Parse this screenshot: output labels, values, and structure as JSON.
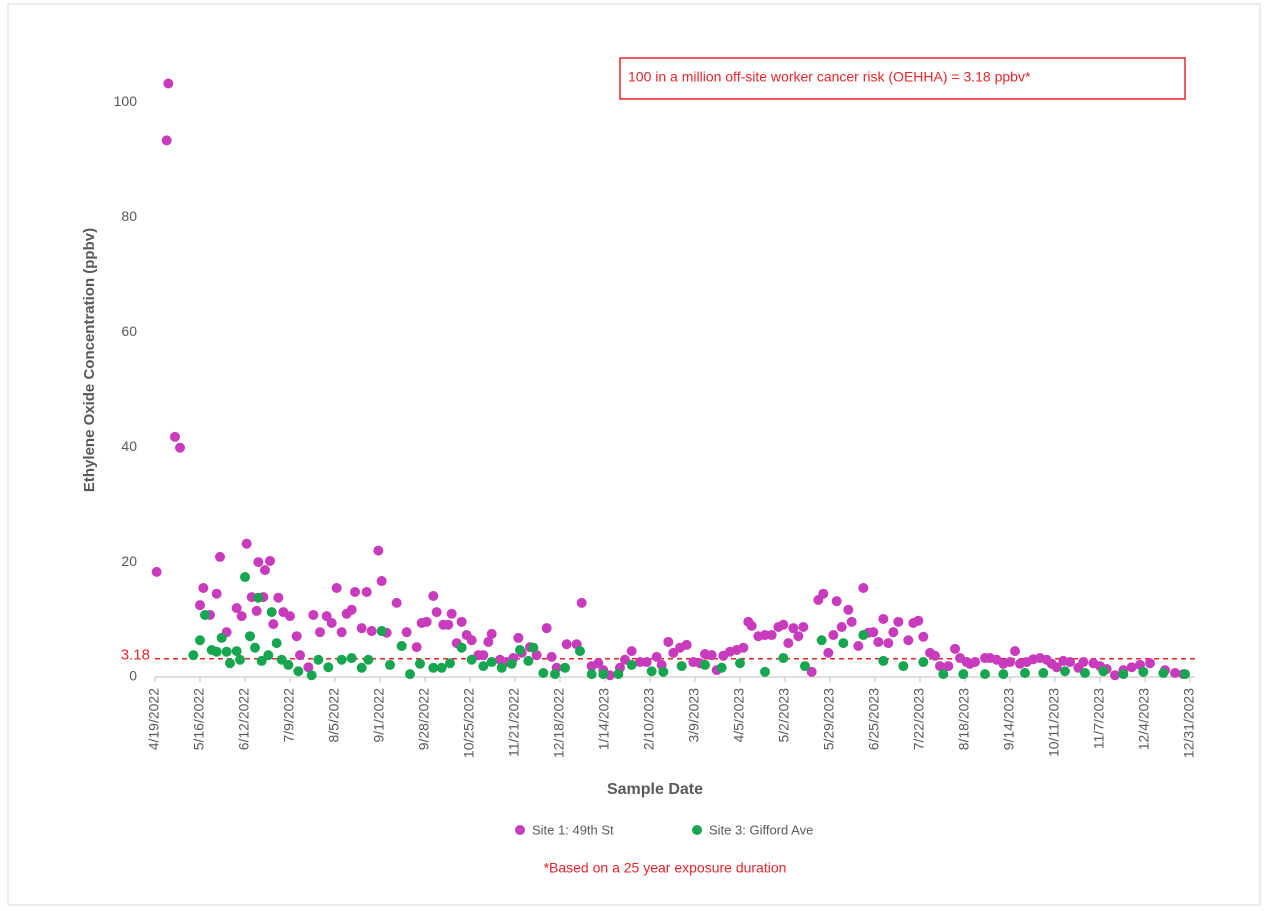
{
  "chart_data": {
    "type": "scatter",
    "xlabel": "Sample Date",
    "ylabel": "Ethylene Oxide Concentration (ppbv)",
    "annotation": "100 in a million off-site worker cancer risk (OEHHA) = 3.18 ppbv*",
    "footnote": "*Based on a 25 year exposure duration",
    "reference_line": {
      "value": 3.18,
      "color": "#e8262a"
    },
    "xlim": [
      "4/19/2022",
      "12/31/2023"
    ],
    "xticks": [
      "4/19/2022",
      "5/16/2022",
      "6/12/2022",
      "7/9/2022",
      "8/5/2022",
      "9/1/2022",
      "9/28/2022",
      "10/25/2022",
      "11/21/2022",
      "12/18/2022",
      "1/14/2023",
      "2/10/2023",
      "3/9/2023",
      "4/5/2023",
      "5/2/2023",
      "5/29/2023",
      "6/25/2023",
      "7/22/2023",
      "8/18/2023",
      "9/14/2023",
      "10/11/2023",
      "11/7/2023",
      "12/4/2023",
      "12/31/2023"
    ],
    "ylim": [
      0,
      110
    ],
    "yticks": [
      0,
      20,
      40,
      60,
      80,
      100
    ],
    "series": [
      {
        "name": "Site 1: 49th St",
        "color": "#c93bbd",
        "x": [
          "4/20/2022",
          "4/26/2022",
          "4/27/2022",
          "5/1/2022",
          "5/4/2022",
          "5/16/2022",
          "5/18/2022",
          "5/22/2022",
          "5/26/2022",
          "5/28/2022",
          "6/1/2022",
          "6/7/2022",
          "6/10/2022",
          "6/13/2022",
          "6/16/2022",
          "6/19/2022",
          "6/20/2022",
          "6/23/2022",
          "6/24/2022",
          "6/27/2022",
          "6/29/2022",
          "7/2/2022",
          "7/5/2022",
          "7/9/2022",
          "7/13/2022",
          "7/15/2022",
          "7/20/2022",
          "7/23/2022",
          "7/27/2022",
          "7/31/2022",
          "8/3/2022",
          "8/6/2022",
          "8/9/2022",
          "8/12/2022",
          "8/15/2022",
          "8/17/2022",
          "8/21/2022",
          "8/24/2022",
          "8/27/2022",
          "8/31/2022",
          "9/2/2022",
          "9/5/2022",
          "9/11/2022",
          "9/14/2022",
          "9/17/2022",
          "9/23/2022",
          "9/26/2022",
          "9/29/2022",
          "10/3/2022",
          "10/5/2022",
          "10/9/2022",
          "10/12/2022",
          "10/14/2022",
          "10/17/2022",
          "10/20/2022",
          "10/23/2022",
          "10/26/2022",
          "10/30/2022",
          "11/2/2022",
          "11/5/2022",
          "11/7/2022",
          "11/12/2022",
          "11/16/2022",
          "11/20/2022",
          "11/23/2022",
          "11/25/2022",
          "11/30/2022",
          "12/4/2022",
          "12/10/2022",
          "12/13/2022",
          "12/16/2022",
          "12/22/2022",
          "12/28/2022",
          "12/31/2022",
          "1/6/2023",
          "1/10/2023",
          "1/13/2023",
          "1/17/2023",
          "1/23/2023",
          "1/26/2023",
          "1/30/2023",
          "2/4/2023",
          "2/8/2023",
          "2/14/2023",
          "2/17/2023",
          "2/21/2023",
          "2/24/2023",
          "2/28/2023",
          "3/4/2023",
          "3/8/2023",
          "3/12/2023",
          "3/15/2023",
          "3/19/2023",
          "3/22/2023",
          "3/26/2023",
          "3/30/2023",
          "4/3/2023",
          "4/7/2023",
          "4/10/2023",
          "4/12/2023",
          "4/16/2023",
          "4/20/2023",
          "4/24/2023",
          "4/28/2023",
          "5/1/2023",
          "5/4/2023",
          "5/7/2023",
          "5/10/2023",
          "5/13/2023",
          "5/18/2023",
          "5/22/2023",
          "5/25/2023",
          "5/28/2023",
          "5/31/2023",
          "6/2/2023",
          "6/5/2023",
          "6/9/2023",
          "6/11/2023",
          "6/15/2023",
          "6/18/2023",
          "6/21/2023",
          "6/24/2023",
          "6/27/2023",
          "6/30/2023",
          "7/3/2023",
          "7/6/2023",
          "7/9/2023",
          "7/15/2023",
          "7/18/2023",
          "7/21/2023",
          "7/24/2023",
          "7/28/2023",
          "7/31/2023",
          "8/3/2023",
          "8/8/2023",
          "8/12/2023",
          "8/15/2023",
          "8/19/2023",
          "8/21/2023",
          "8/24/2023",
          "8/30/2023",
          "9/2/2023",
          "9/6/2023",
          "9/10/2023",
          "9/14/2023",
          "9/17/2023",
          "9/20/2023",
          "9/24/2023",
          "9/28/2023",
          "10/2/2023",
          "10/6/2023",
          "10/9/2023",
          "10/12/2023",
          "10/16/2023",
          "10/20/2023",
          "10/25/2023",
          "10/28/2023",
          "11/3/2023",
          "11/7/2023",
          "11/11/2023",
          "11/16/2023",
          "11/21/2023",
          "11/26/2023",
          "12/1/2023",
          "12/7/2023",
          "12/16/2023",
          "12/22/2023",
          "12/27/2023"
        ],
        "values": [
          18.3,
          93.4,
          103.3,
          41.8,
          39.9,
          12.5,
          15.5,
          10.8,
          14.5,
          20.9,
          7.8,
          12,
          10.6,
          23.2,
          13.9,
          11.5,
          20,
          13.9,
          18.6,
          20.2,
          9.2,
          13.8,
          11.3,
          10.6,
          7.1,
          3.8,
          1.7,
          10.8,
          7.8,
          10.6,
          9.4,
          15.5,
          7.8,
          11,
          11.7,
          14.8,
          8.5,
          14.8,
          8,
          22,
          16.7,
          7.7,
          12.9,
          5.4,
          7.8,
          5.2,
          9.4,
          9.6,
          14.1,
          11.3,
          9.1,
          9.1,
          11,
          5.9,
          9.6,
          7.3,
          6.4,
          3.8,
          3.8,
          6.1,
          7.5,
          3,
          2.6,
          3.3,
          6.8,
          4.2,
          5.2,
          3.8,
          8.5,
          3.5,
          1.6,
          5.7,
          5.7,
          12.9,
          1.9,
          2.4,
          1.2,
          0.3,
          1.6,
          3,
          4.5,
          2.6,
          2.6,
          3.5,
          2.1,
          6.1,
          4.2,
          5.1,
          5.6,
          2.6,
          2.4,
          4,
          3.8,
          1.2,
          3.7,
          4.4,
          4.7,
          5.1,
          9.6,
          8.9,
          7.1,
          7.3,
          7.3,
          8.7,
          9.1,
          5.9,
          8.5,
          7.1,
          8.7,
          0.9,
          13.4,
          14.5,
          4.2,
          7.3,
          13.2,
          8.7,
          11.7,
          9.6,
          5.4,
          15.5,
          7.7,
          7.8,
          6.1,
          10.1,
          5.9,
          7.8,
          9.6,
          6.4,
          9.4,
          9.8,
          7,
          4.2,
          3.7,
          1.9,
          1.9,
          4.9,
          3.3,
          2.6,
          2.3,
          2.6,
          3.3,
          3.3,
          3,
          2.3,
          2.6,
          4.5,
          2.3,
          2.6,
          3.1,
          3.3,
          3,
          2.3,
          1.7,
          2.8,
          2.6,
          1.6,
          2.6,
          2.4,
          1.9,
          1.4,
          0.3,
          1.2,
          1.7,
          2.1,
          2.4,
          1.2,
          0.7,
          0.5
        ]
      },
      {
        "name": "Site 3: Gifford Ave",
        "color": "#17a650",
        "x": [
          "5/12/2022",
          "5/16/2022",
          "5/19/2022",
          "5/23/2022",
          "5/26/2022",
          "5/29/2022",
          "6/1/2022",
          "6/3/2022",
          "6/7/2022",
          "6/9/2022",
          "6/12/2022",
          "6/15/2022",
          "6/18/2022",
          "6/20/2022",
          "6/22/2022",
          "6/26/2022",
          "6/28/2022",
          "7/1/2022",
          "7/4/2022",
          "7/8/2022",
          "7/14/2022",
          "7/22/2022",
          "7/26/2022",
          "8/1/2022",
          "8/9/2022",
          "8/15/2022",
          "8/21/2022",
          "8/25/2022",
          "9/2/2022",
          "9/7/2022",
          "9/14/2022",
          "9/19/2022",
          "9/25/2022",
          "10/3/2022",
          "10/8/2022",
          "10/13/2022",
          "10/20/2022",
          "10/26/2022",
          "11/2/2022",
          "11/7/2022",
          "11/13/2022",
          "11/19/2022",
          "11/24/2022",
          "11/29/2022",
          "12/2/2022",
          "12/8/2022",
          "12/15/2022",
          "12/21/2022",
          "12/30/2022",
          "1/6/2023",
          "1/13/2023",
          "1/22/2023",
          "1/30/2023",
          "2/11/2023",
          "2/18/2023",
          "3/1/2023",
          "3/15/2023",
          "3/25/2023",
          "4/5/2023",
          "4/20/2023",
          "5/1/2023",
          "5/14/2023",
          "5/24/2023",
          "6/6/2023",
          "6/18/2023",
          "6/30/2023",
          "7/12/2023",
          "7/24/2023",
          "8/5/2023",
          "8/17/2023",
          "8/30/2023",
          "9/10/2023",
          "9/23/2023",
          "10/4/2023",
          "10/17/2023",
          "10/29/2023",
          "11/9/2023",
          "11/21/2023",
          "12/3/2023",
          "12/15/2023",
          "12/28/2023"
        ],
        "values": [
          3.8,
          6.4,
          10.8,
          4.7,
          4.4,
          6.8,
          4.4,
          2.4,
          4.5,
          3,
          17.4,
          7.1,
          5.1,
          13.8,
          2.8,
          3.8,
          11.3,
          5.9,
          3,
          2.1,
          1,
          0.3,
          3,
          1.7,
          3,
          3.3,
          1.6,
          3,
          8,
          2.1,
          5.4,
          0.5,
          2.3,
          1.6,
          1.6,
          2.4,
          5.1,
          3,
          1.9,
          2.6,
          1.6,
          2.3,
          4.7,
          2.8,
          5.1,
          0.7,
          0.5,
          1.6,
          4.5,
          0.5,
          0.5,
          0.5,
          2.1,
          1,
          0.9,
          1.9,
          2.1,
          1.6,
          2.4,
          0.9,
          3.3,
          1.9,
          6.4,
          5.9,
          7.3,
          2.8,
          1.9,
          2.6,
          0.5,
          0.5,
          0.5,
          0.5,
          0.7,
          0.7,
          1,
          0.7,
          1,
          0.5,
          0.9,
          0.7,
          0.5
        ]
      }
    ]
  }
}
